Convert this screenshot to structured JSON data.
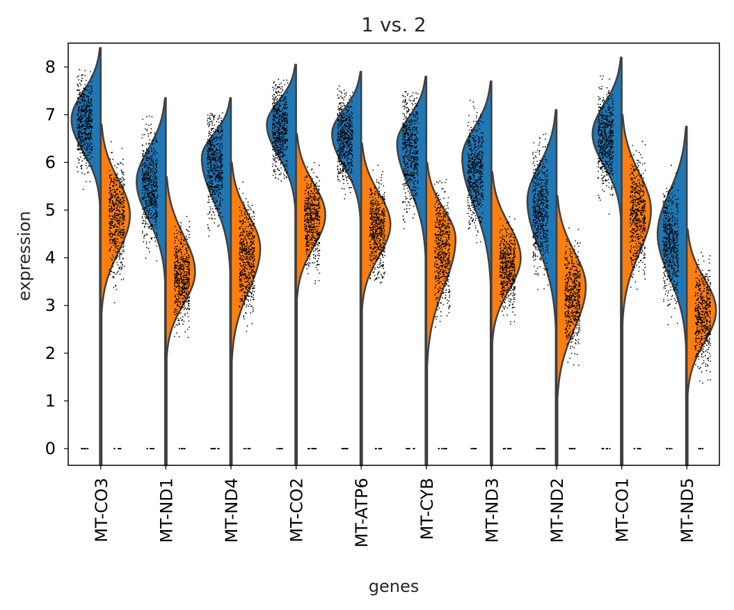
{
  "chart_data": {
    "type": "violin",
    "title": "1 vs. 2",
    "xlabel": "genes",
    "ylabel": "expression",
    "ylim": [
      -0.35,
      8.5
    ],
    "yticks": [
      0,
      1,
      2,
      3,
      4,
      5,
      6,
      7,
      8
    ],
    "split": true,
    "colors": {
      "group_1": "#1f77b4",
      "group_2": "#ff7f0e",
      "outline": "#3f3f3f",
      "points": "#000000"
    },
    "categories": [
      "MT-CO3",
      "MT-ND1",
      "MT-ND4",
      "MT-CO2",
      "MT-ATP6",
      "MT-CYB",
      "MT-ND3",
      "MT-ND2",
      "MT-CO1",
      "MT-ND5"
    ],
    "violins": [
      {
        "gene": "MT-CO3",
        "g1": {
          "max": 8.4,
          "mode": 6.9,
          "median": 6.8,
          "q1": 6.3,
          "q3": 7.2
        },
        "g2": {
          "max": 6.8,
          "mode": 4.9,
          "median": 4.9,
          "q1": 4.2,
          "q3": 5.3
        }
      },
      {
        "gene": "MT-ND1",
        "g1": {
          "max": 7.35,
          "mode": 5.6,
          "median": 5.5,
          "q1": 4.9,
          "q3": 6.0
        },
        "g2": {
          "max": 5.7,
          "mode": 3.7,
          "median": 3.6,
          "q1": 3.1,
          "q3": 4.0
        }
      },
      {
        "gene": "MT-ND4",
        "g1": {
          "max": 7.35,
          "mode": 6.1,
          "median": 6.0,
          "q1": 5.3,
          "q3": 6.4
        },
        "g2": {
          "max": 6.0,
          "mode": 4.2,
          "median": 4.0,
          "q1": 3.4,
          "q3": 4.5
        }
      },
      {
        "gene": "MT-CO2",
        "g1": {
          "max": 8.05,
          "mode": 6.8,
          "median": 6.7,
          "q1": 6.2,
          "q3": 7.1
        },
        "g2": {
          "max": 6.6,
          "mode": 4.9,
          "median": 4.8,
          "q1": 4.3,
          "q3": 5.2
        }
      },
      {
        "gene": "MT-ATP6",
        "g1": {
          "max": 7.9,
          "mode": 6.6,
          "median": 6.5,
          "q1": 6.0,
          "q3": 6.9
        },
        "g2": {
          "max": 6.4,
          "mode": 4.7,
          "median": 4.6,
          "q1": 4.1,
          "q3": 5.0
        }
      },
      {
        "gene": "MT-CYB",
        "g1": {
          "max": 7.8,
          "mode": 6.4,
          "median": 6.3,
          "q1": 5.6,
          "q3": 6.8
        },
        "g2": {
          "max": 6.0,
          "mode": 4.4,
          "median": 4.2,
          "q1": 3.5,
          "q3": 4.7
        }
      },
      {
        "gene": "MT-ND3",
        "g1": {
          "max": 7.7,
          "mode": 6.1,
          "median": 5.8,
          "q1": 5.2,
          "q3": 6.3
        },
        "g2": {
          "max": 5.8,
          "mode": 4.0,
          "median": 3.8,
          "q1": 3.4,
          "q3": 4.2
        }
      },
      {
        "gene": "MT-ND2",
        "g1": {
          "max": 7.1,
          "mode": 5.2,
          "median": 5.0,
          "q1": 4.3,
          "q3": 5.5
        },
        "g2": {
          "max": 5.3,
          "mode": 3.4,
          "median": 3.2,
          "q1": 2.6,
          "q3": 3.6
        }
      },
      {
        "gene": "MT-CO1",
        "g1": {
          "max": 8.2,
          "mode": 6.6,
          "median": 6.5,
          "q1": 6.0,
          "q3": 7.0
        },
        "g2": {
          "max": 7.0,
          "mode": 5.0,
          "median": 4.9,
          "q1": 4.2,
          "q3": 5.3
        }
      },
      {
        "gene": "MT-ND5",
        "g1": {
          "max": 6.75,
          "mode": 4.5,
          "median": 4.3,
          "q1": 3.7,
          "q3": 4.8
        },
        "g2": {
          "max": 4.6,
          "mode": 2.9,
          "median": 2.8,
          "q1": 2.3,
          "q3": 3.3
        }
      }
    ],
    "zero_points_present": true
  }
}
